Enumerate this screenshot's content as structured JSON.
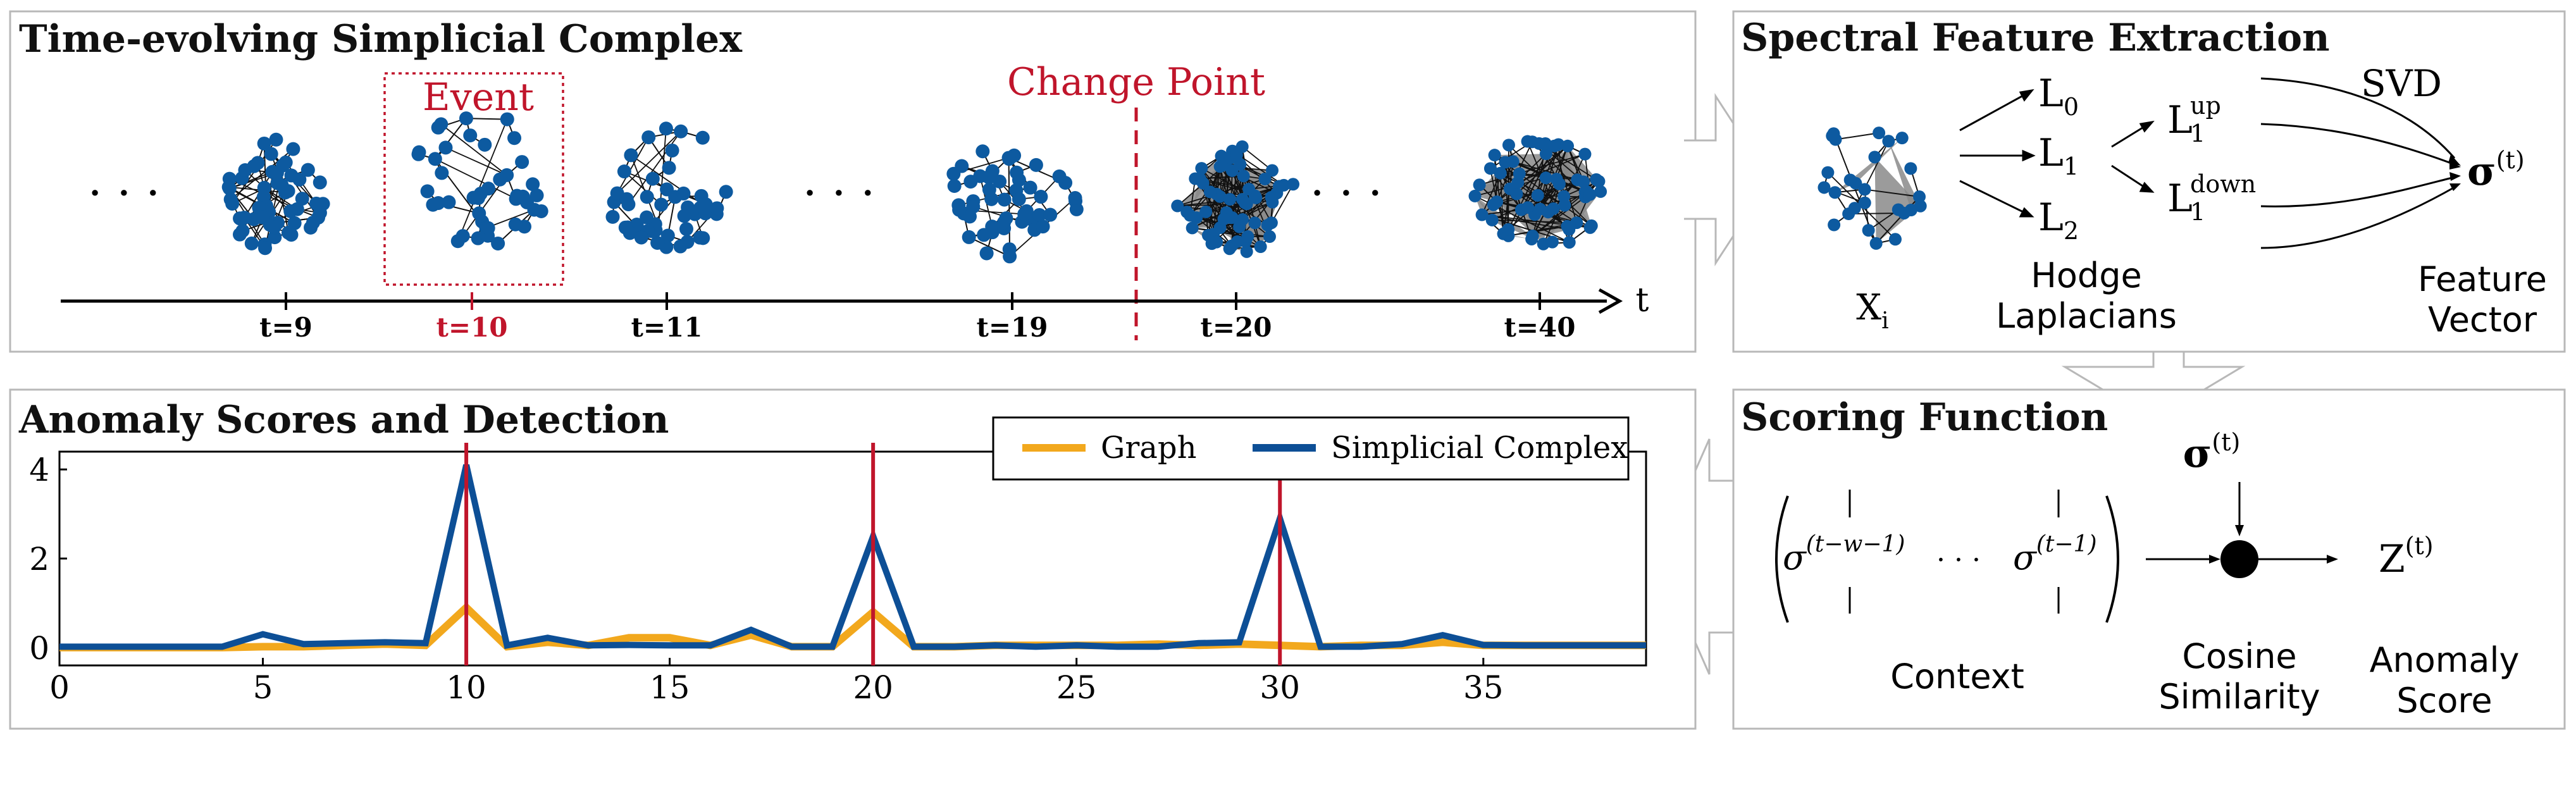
{
  "panels": {
    "timeline": {
      "title": "Time-evolving Simplicial Complex",
      "event_label": "Event",
      "change_label": "Change Point",
      "axis_label": "t",
      "ellipsis": "· · ·",
      "ticks": [
        "t=9",
        "t=10",
        "t=11",
        "t=19",
        "t=20",
        "t=40"
      ]
    },
    "spectral": {
      "title": "Spectral Feature Extraction",
      "svd": "SVD",
      "L0": "L",
      "L0_sub": "0",
      "L1": "L",
      "L1_sub": "1",
      "L2": "L",
      "L2_sub": "2",
      "L1up": "L",
      "L1up_sub": "1",
      "L1up_sup": "up",
      "L1down": "L",
      "L1down_sub": "1",
      "L1down_sup": "down",
      "sigma": "σ",
      "sigma_sup": "(t)",
      "x_label": "X",
      "x_sub": "i",
      "hodge_line1": "Hodge",
      "hodge_line2": "Laplacians",
      "feature_line1": "Feature",
      "feature_line2": "Vector"
    },
    "scoring": {
      "title": "Scoring Function",
      "sigma": "σ",
      "sigma_sup": "(t)",
      "ctx_left_sigma": "σ",
      "ctx_left_sup": "(t−w−1)",
      "ctx_dots": "· · ·",
      "ctx_right_sigma": "σ",
      "ctx_right_sup": "(t−1)",
      "context": "Context",
      "cosine_line1": "Cosine",
      "cosine_line2": "Similarity",
      "z": "Z",
      "z_sup": "(t)",
      "anomaly_line1": "Anomaly",
      "anomaly_line2": "Score"
    },
    "scores": {
      "title": "Anomaly Scores and Detection"
    }
  },
  "colors": {
    "graph": "#f2a81d",
    "simplicial": "#0d4f96",
    "detection": "#c0152b",
    "node": "#0d5aa0",
    "triangle": "#8a8a8a"
  },
  "chart_data": {
    "type": "line",
    "title": "Anomaly Scores and Detection",
    "xlabel": "",
    "ylabel": "",
    "xlim": [
      0,
      39
    ],
    "ylim": [
      -0.4,
      4.4
    ],
    "xticks": [
      0,
      5,
      10,
      15,
      20,
      25,
      30,
      35
    ],
    "yticks": [
      0,
      2,
      4
    ],
    "grid": false,
    "legend_position": "top-right",
    "x": [
      0,
      1,
      2,
      3,
      4,
      5,
      6,
      7,
      8,
      9,
      10,
      11,
      12,
      13,
      14,
      15,
      16,
      17,
      18,
      19,
      20,
      21,
      22,
      23,
      24,
      25,
      26,
      27,
      28,
      29,
      30,
      31,
      32,
      33,
      34,
      35,
      36,
      37,
      38,
      39
    ],
    "series": [
      {
        "name": "Graph",
        "color": "#f2a81d",
        "values": [
          0,
          0,
          0,
          0,
          0,
          0.02,
          0.02,
          0.05,
          0.08,
          0.05,
          0.9,
          0.02,
          0.12,
          0.05,
          0.22,
          0.22,
          0.05,
          0.28,
          0.02,
          0.02,
          0.8,
          0.02,
          0.02,
          0.05,
          0.05,
          0.05,
          0.05,
          0.08,
          0.05,
          0.08,
          0.05,
          0.02,
          0.05,
          0.05,
          0.12,
          0.05,
          0.05,
          0.05,
          0.05,
          0.05
        ]
      },
      {
        "name": "Simplicial Complex",
        "color": "#0d4f96",
        "values": [
          0.02,
          0.02,
          0.02,
          0.02,
          0.02,
          0.3,
          0.08,
          0.1,
          0.12,
          0.1,
          4.1,
          0.05,
          0.22,
          0.05,
          0.06,
          0.05,
          0.05,
          0.4,
          0.02,
          0.02,
          2.5,
          0.02,
          0.02,
          0.05,
          0.02,
          0.05,
          0.02,
          0.02,
          0.1,
          0.12,
          2.9,
          0.02,
          0.02,
          0.08,
          0.28,
          0.06,
          0.05,
          0.05,
          0.05,
          0.05
        ]
      }
    ],
    "vlines": [
      10,
      20,
      30
    ]
  }
}
